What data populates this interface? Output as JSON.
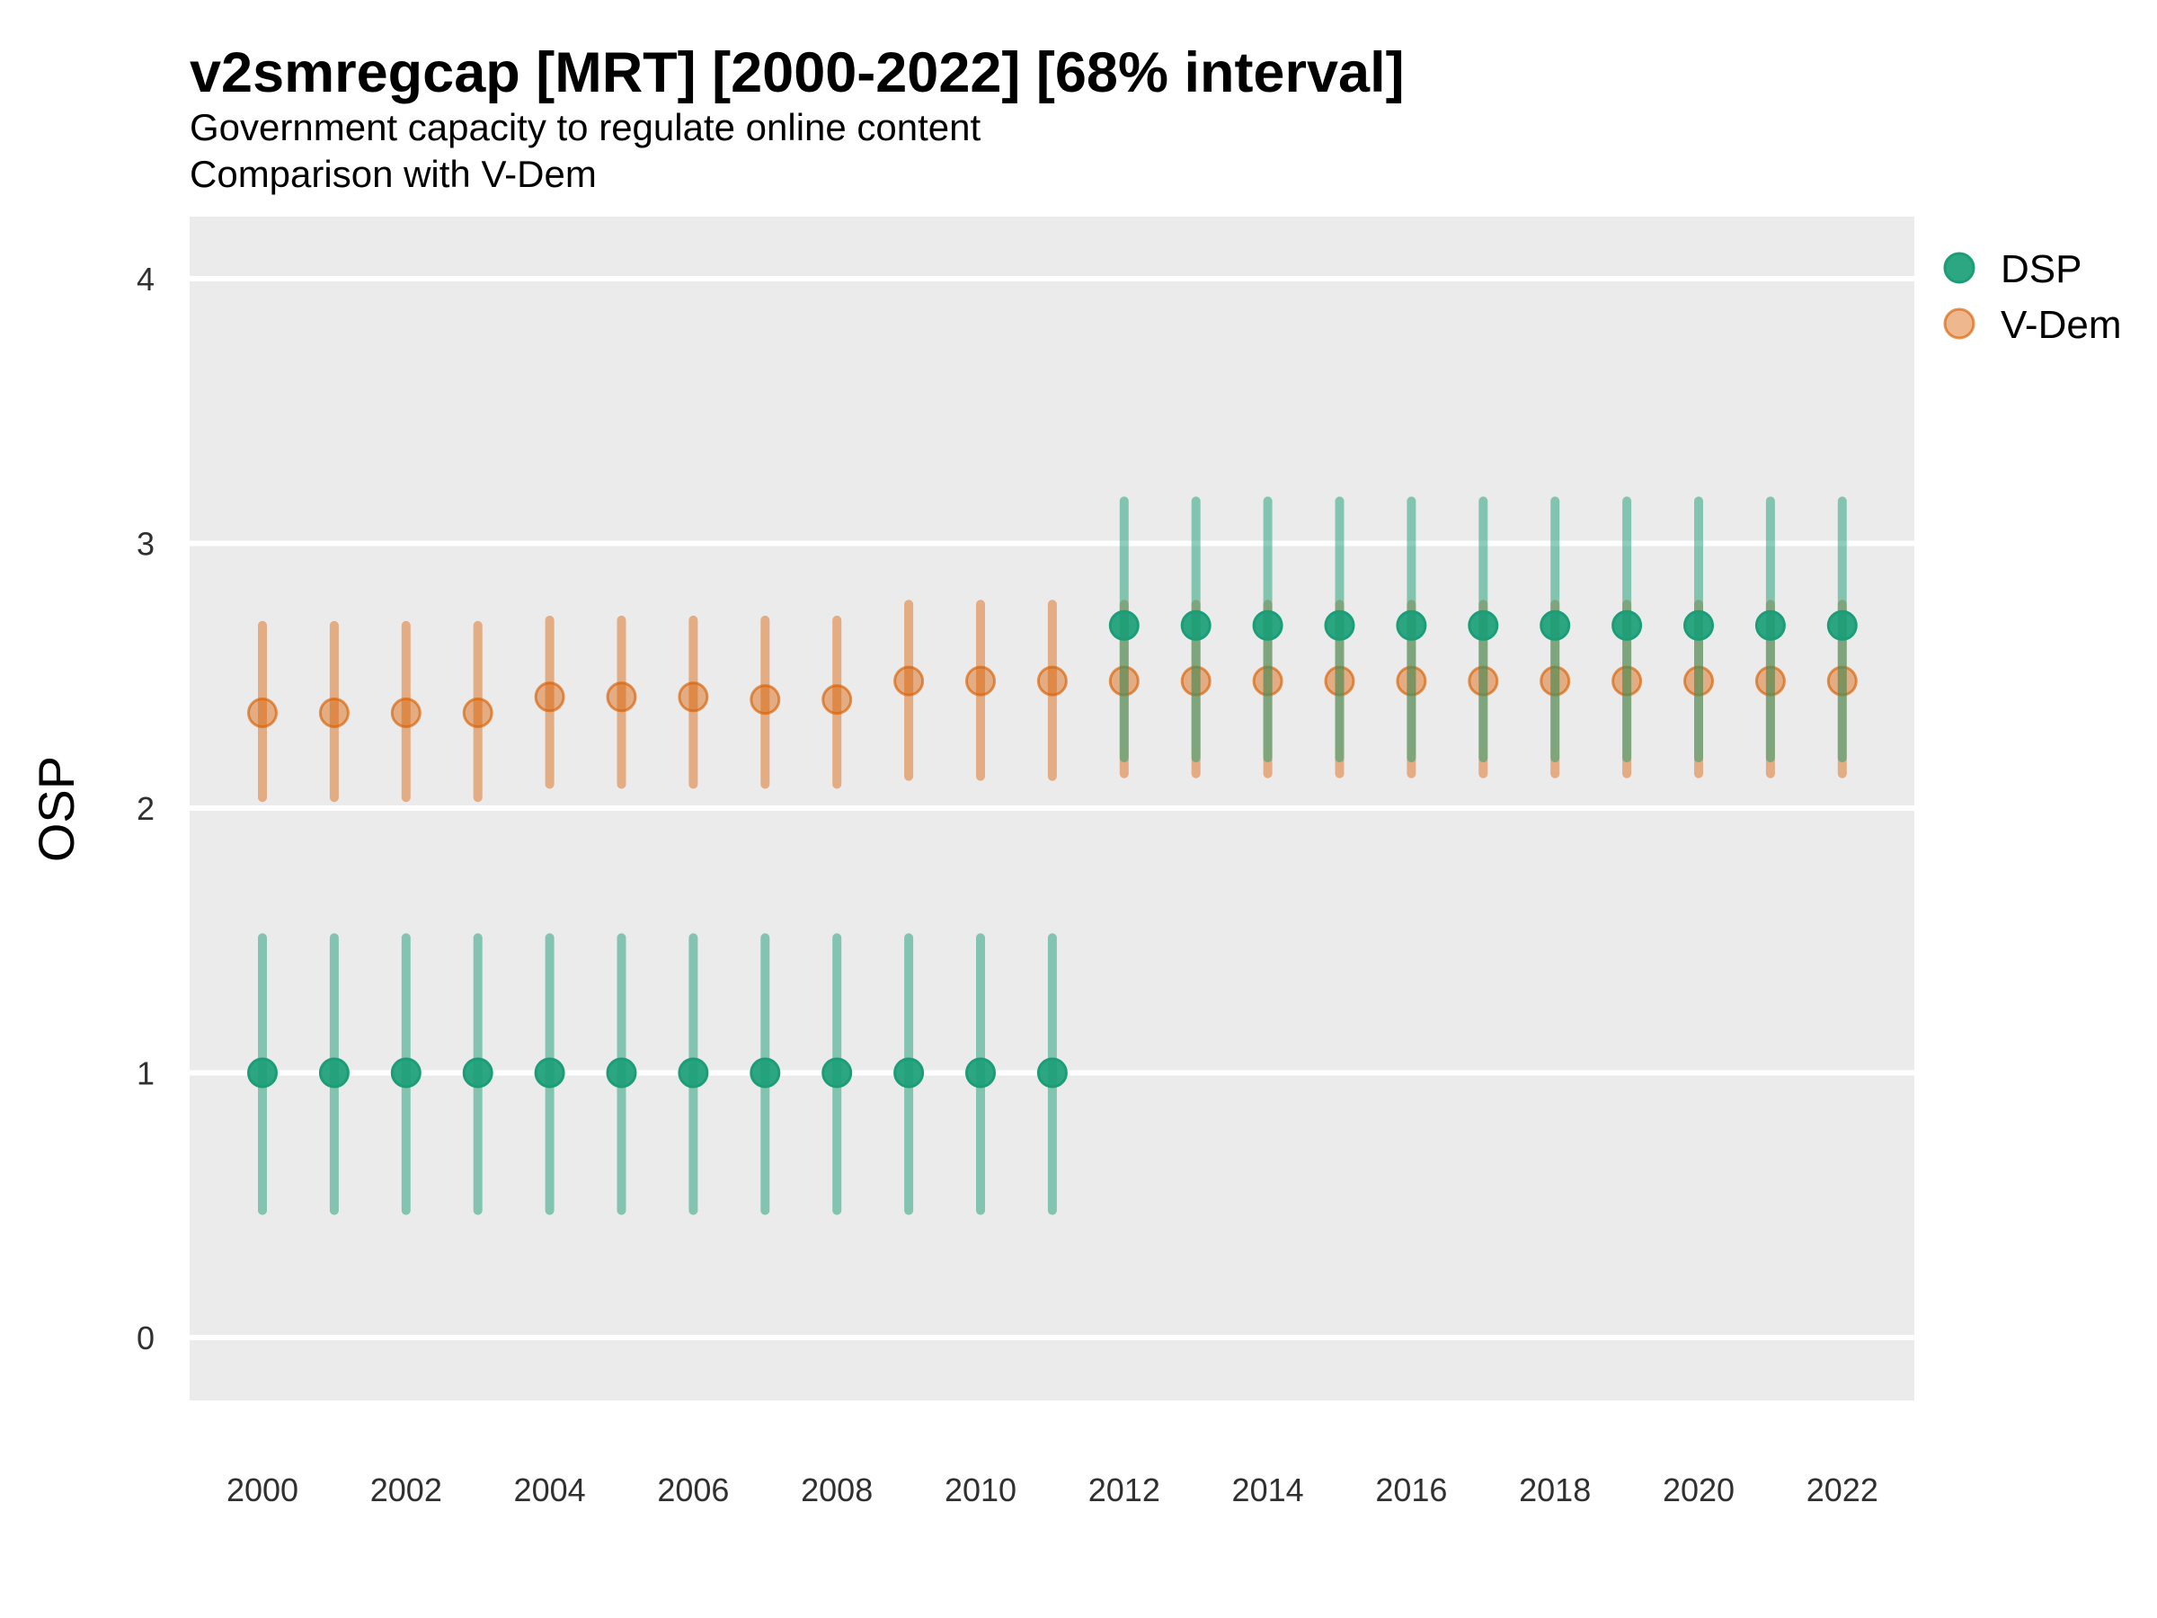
{
  "header": {
    "title": "v2smregcap [MRT] [2000-2022] [68% interval]",
    "subtitle_line1": "Government capacity to regulate online content",
    "subtitle_line2": "Comparison with V-Dem"
  },
  "legend": {
    "position": "right",
    "items": [
      {
        "label": "DSP"
      },
      {
        "label": "V-Dem"
      }
    ]
  },
  "colors": {
    "page_background": "#FFFFFF",
    "panel_background": "#EBEBEB",
    "gridline": "#FFFFFF",
    "dsp_base": "#1B9E77",
    "dsp_point_fill": "rgba(27,158,119,0.92)",
    "dsp_point_stroke": "#1B9E77",
    "dsp_interval": "rgba(27,158,119,0.5)",
    "vdem_base": "#D95F02",
    "vdem_point_fill": "rgba(217,95,2,0.45)",
    "vdem_point_stroke": "rgba(217,95,2,0.65)",
    "vdem_interval": "rgba(217,95,2,0.45)",
    "title_text": "#000000",
    "tick_text": "#303030"
  },
  "chart_data": {
    "type": "scatter",
    "subtype": "pointrange",
    "interval_level": "68%",
    "title": "v2smregcap [MRT] [2000-2022] [68% interval]",
    "xlabel": "",
    "ylabel": "OSP",
    "grid": "horizontal-major-only",
    "legend_position": "right",
    "ylim": [
      -0.23,
      4.23
    ],
    "xlim": [
      1998.9,
      2023.1
    ],
    "y_ticks": [
      0,
      1,
      2,
      3,
      4
    ],
    "x_ticks": [
      2000,
      2002,
      2004,
      2006,
      2008,
      2010,
      2012,
      2014,
      2016,
      2018,
      2020,
      2022
    ],
    "x": [
      2000,
      2001,
      2002,
      2003,
      2004,
      2005,
      2006,
      2007,
      2008,
      2009,
      2010,
      2011,
      2012,
      2013,
      2014,
      2015,
      2016,
      2017,
      2018,
      2019,
      2020,
      2021,
      2022
    ],
    "series": [
      {
        "name": "DSP",
        "estimate": [
          1.0,
          1.0,
          1.0,
          1.0,
          1.0,
          1.0,
          1.0,
          1.0,
          1.0,
          1.0,
          1.0,
          1.0,
          2.69,
          2.69,
          2.69,
          2.69,
          2.69,
          2.69,
          2.69,
          2.69,
          2.69,
          2.69,
          2.69
        ],
        "lower": [
          0.48,
          0.48,
          0.48,
          0.48,
          0.48,
          0.48,
          0.48,
          0.48,
          0.48,
          0.48,
          0.48,
          0.48,
          2.19,
          2.19,
          2.19,
          2.19,
          2.19,
          2.19,
          2.19,
          2.19,
          2.19,
          2.19,
          2.19
        ],
        "upper": [
          1.51,
          1.51,
          1.51,
          1.51,
          1.51,
          1.51,
          1.51,
          1.51,
          1.51,
          1.51,
          1.51,
          1.51,
          3.16,
          3.16,
          3.16,
          3.16,
          3.16,
          3.16,
          3.16,
          3.16,
          3.16,
          3.16,
          3.16
        ]
      },
      {
        "name": "V-Dem",
        "estimate": [
          2.36,
          2.36,
          2.36,
          2.36,
          2.42,
          2.42,
          2.42,
          2.41,
          2.41,
          2.48,
          2.48,
          2.48,
          2.48,
          2.48,
          2.48,
          2.48,
          2.48,
          2.48,
          2.48,
          2.48,
          2.48,
          2.48,
          2.48
        ],
        "lower": [
          2.04,
          2.04,
          2.04,
          2.04,
          2.09,
          2.09,
          2.09,
          2.09,
          2.09,
          2.12,
          2.12,
          2.12,
          2.13,
          2.13,
          2.13,
          2.13,
          2.13,
          2.13,
          2.13,
          2.13,
          2.13,
          2.13,
          2.13
        ],
        "upper": [
          2.69,
          2.69,
          2.69,
          2.69,
          2.71,
          2.71,
          2.71,
          2.71,
          2.71,
          2.77,
          2.77,
          2.77,
          2.77,
          2.77,
          2.77,
          2.77,
          2.77,
          2.77,
          2.77,
          2.77,
          2.77,
          2.77,
          2.77
        ]
      }
    ]
  }
}
